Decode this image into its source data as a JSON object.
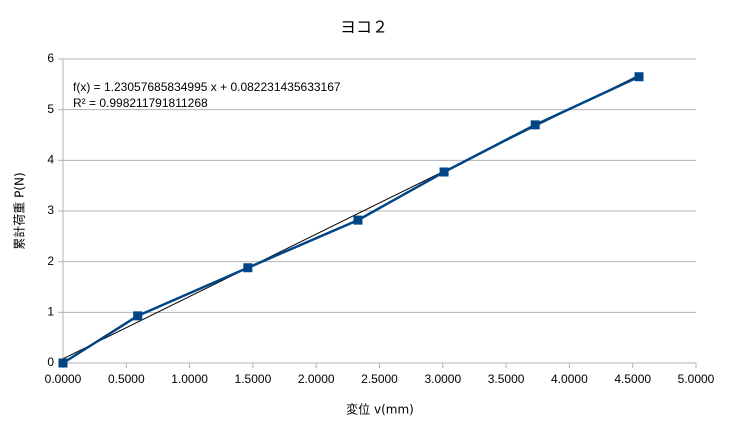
{
  "chart_data": {
    "type": "scatter",
    "title": "ヨコ２",
    "x_label": "変位 v(mm)",
    "y_label": "累計荷重 P(N)",
    "x": [
      0.0,
      0.59,
      1.46,
      2.33,
      3.01,
      3.73,
      4.55
    ],
    "values": [
      0.0,
      0.93,
      1.88,
      2.82,
      3.77,
      4.7,
      5.65
    ],
    "color": "#004586",
    "xlim": [
      0,
      5
    ],
    "xticks": [
      {
        "value": 0,
        "label": "0.0000"
      },
      {
        "value": 0.5,
        "label": "0.5000"
      },
      {
        "value": 1,
        "label": "1.0000"
      },
      {
        "value": 1.5,
        "label": "1.5000"
      },
      {
        "value": 2,
        "label": "2.0000"
      },
      {
        "value": 2.5,
        "label": "2.5000"
      },
      {
        "value": 3,
        "label": "3.0000"
      },
      {
        "value": 3.5,
        "label": "3.5000"
      },
      {
        "value": 4,
        "label": "4.0000"
      },
      {
        "value": 4.5,
        "label": "4.5000"
      },
      {
        "value": 5,
        "label": "5.0000"
      }
    ],
    "ylim": [
      0,
      6
    ],
    "yticks": [
      0,
      1,
      2,
      3,
      4,
      5,
      6
    ],
    "grid": true,
    "trendline": {
      "slope": 1.23057685834995,
      "intercept": 0.082231435633167,
      "color": "#000000",
      "equation": "f(x) = 1.23057685834995 x + 0.082231435633167",
      "r2_label": "R² = 0.998211791811268"
    }
  }
}
